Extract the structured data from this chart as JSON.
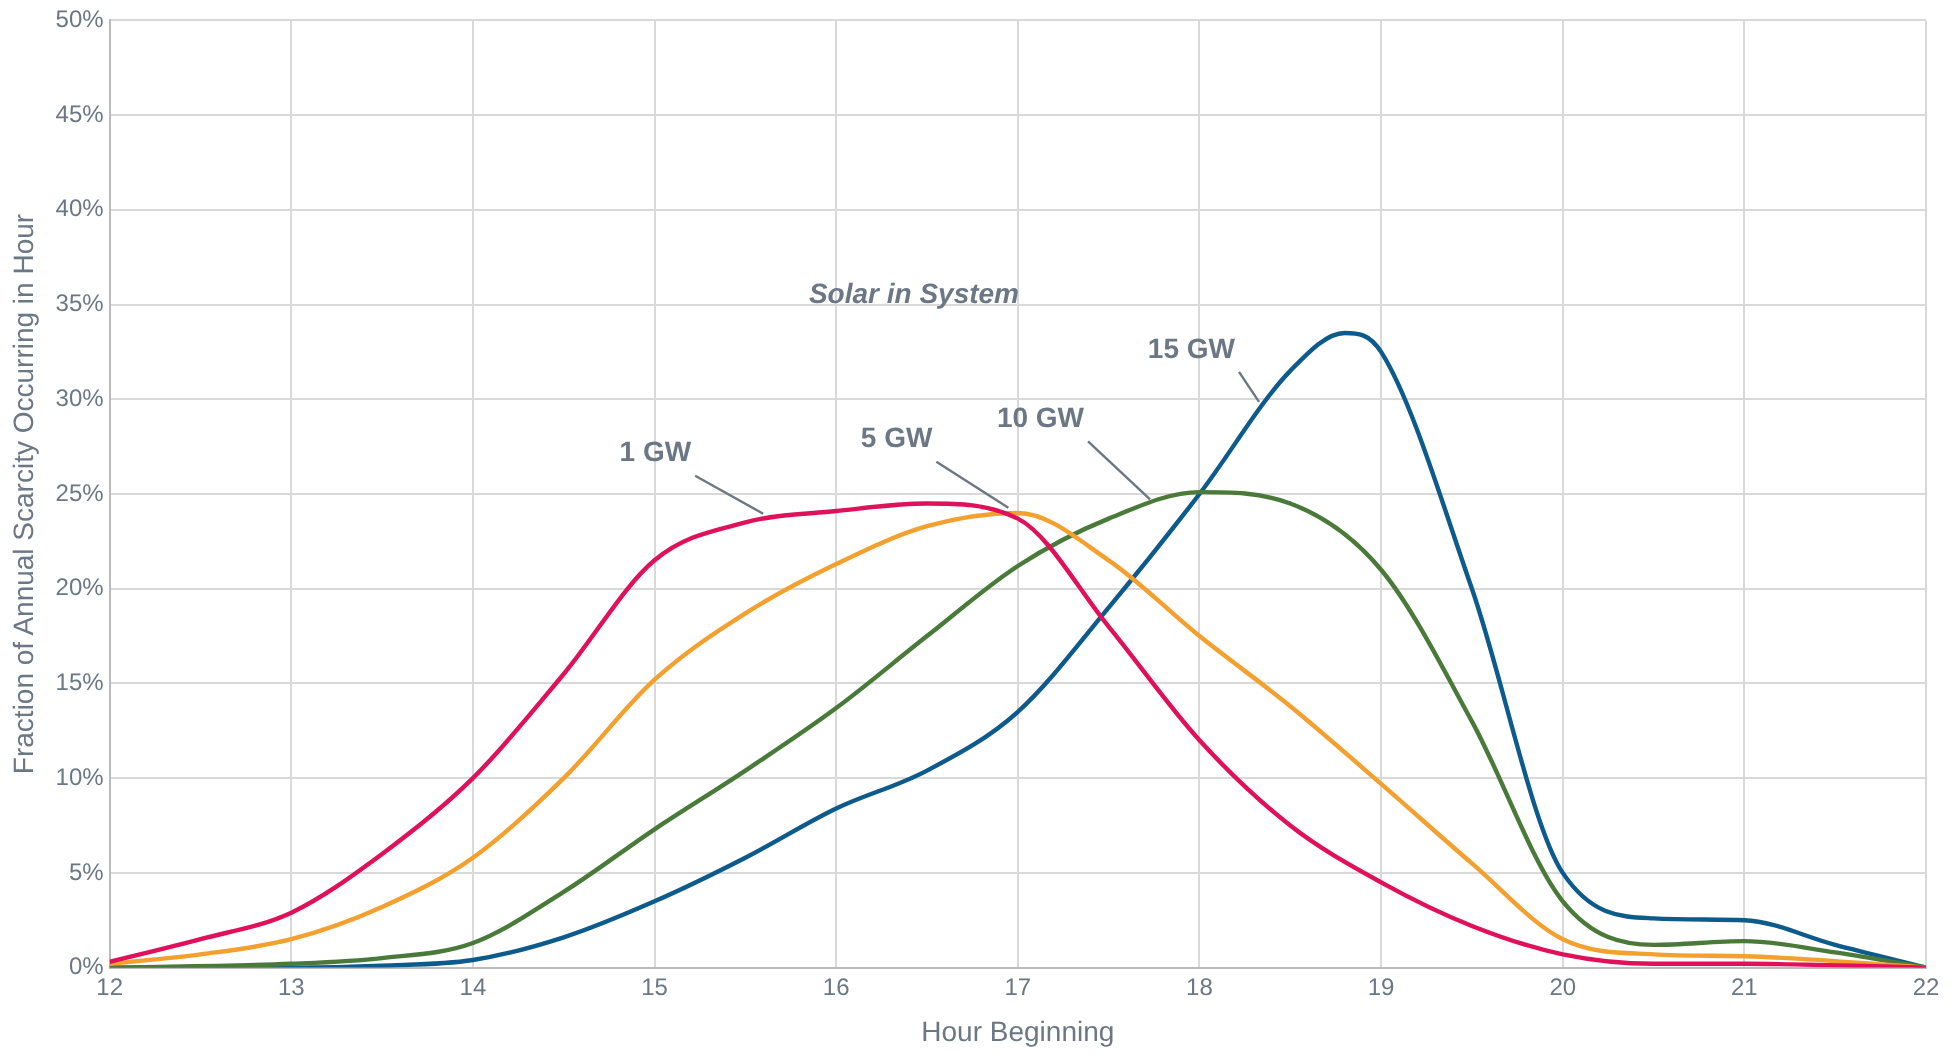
{
  "chart_data": {
    "type": "line",
    "legend_title": "Solar in System",
    "xlabel": "Hour Beginning",
    "ylabel": "Fraction of Annual Scarcity Occurring in Hour",
    "xlim": [
      12,
      22
    ],
    "xticks": [
      12,
      13,
      14,
      15,
      16,
      17,
      18,
      19,
      20,
      21,
      22
    ],
    "ylim": [
      0,
      50
    ],
    "yticks": [
      {
        "value": 0,
        "label": "0%"
      },
      {
        "value": 5,
        "label": "5%"
      },
      {
        "value": 10,
        "label": "10%"
      },
      {
        "value": 15,
        "label": "15%"
      },
      {
        "value": 20,
        "label": "20%"
      },
      {
        "value": 25,
        "label": "25%"
      },
      {
        "value": 30,
        "label": "30%"
      },
      {
        "value": 35,
        "label": "35%"
      },
      {
        "value": 40,
        "label": "40%"
      },
      {
        "value": 45,
        "label": "45%"
      },
      {
        "value": 50,
        "label": "50%"
      }
    ],
    "grid": true,
    "legend": false,
    "marker": "none",
    "line_style": "solid",
    "series": [
      {
        "name": "1 GW",
        "color": "#e0105a",
        "x": [
          12,
          12.5,
          13,
          13.5,
          14,
          14.5,
          15,
          15.5,
          16,
          16.5,
          17,
          17.5,
          18,
          18.5,
          19,
          19.5,
          20,
          20.5,
          21,
          22
        ],
        "values": [
          0.3,
          1.5,
          2.9,
          6,
          10,
          15.5,
          21.5,
          23.5,
          24.1,
          24.5,
          23.7,
          18,
          12,
          7.5,
          4.5,
          2.2,
          0.7,
          0.2,
          0.2,
          0
        ]
      },
      {
        "name": "5 GW",
        "color": "#f4a02e",
        "x": [
          12,
          12.5,
          13,
          13.5,
          14,
          14.5,
          15,
          15.5,
          16,
          16.5,
          17,
          17.5,
          18,
          18.5,
          19,
          19.5,
          20,
          20.5,
          21,
          22
        ],
        "values": [
          0.2,
          0.7,
          1.5,
          3.2,
          5.8,
          10,
          15.2,
          18.7,
          21.3,
          23.3,
          24,
          21.5,
          17.5,
          13.8,
          9.7,
          5.5,
          1.5,
          0.7,
          0.6,
          0
        ]
      },
      {
        "name": "10 GW",
        "color": "#4a7a3a",
        "x": [
          12,
          13,
          13.5,
          14,
          14.5,
          15,
          15.5,
          16,
          16.5,
          17,
          17.5,
          18,
          18.5,
          19,
          19.5,
          20,
          20.5,
          21,
          21.5,
          22
        ],
        "values": [
          0,
          0.2,
          0.5,
          1.3,
          4,
          7.3,
          10.4,
          13.7,
          17.5,
          21.2,
          23.7,
          25.1,
          24.5,
          21,
          13,
          3.5,
          1.2,
          1.4,
          0.8,
          0
        ]
      },
      {
        "name": "15 GW",
        "color": "#0d5a8c",
        "x": [
          12,
          13,
          13.5,
          14,
          14.5,
          15,
          15.5,
          16,
          16.5,
          17,
          17.5,
          18,
          18.5,
          18.8,
          19,
          19.5,
          20,
          20.5,
          21,
          21.5,
          22
        ],
        "values": [
          0,
          0,
          0.1,
          0.4,
          1.6,
          3.5,
          5.8,
          8.4,
          10.4,
          13.5,
          19,
          25,
          31.5,
          33.5,
          32.5,
          20,
          5,
          2.6,
          2.5,
          1.2,
          0
        ]
      }
    ]
  }
}
